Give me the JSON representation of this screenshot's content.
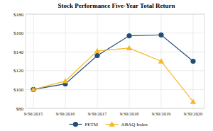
{
  "chart_data": {
    "type": "line",
    "title": "Stock Performance Five-Year Total Return",
    "categories": [
      "9/30/2015",
      "9/30/2016",
      "9/30/2017",
      "9/30/2018",
      "9/30/2019",
      "9/30/2020"
    ],
    "series": [
      {
        "name": "FETM",
        "color": "#1f4e79",
        "marker": "circle",
        "values": [
          100,
          106,
          136,
          157,
          158,
          130
        ]
      },
      {
        "name": "ABAQ Index",
        "color": "#f5b828",
        "marker": "triangle",
        "values": [
          100,
          109,
          141,
          144,
          130,
          87
        ]
      }
    ],
    "ylim": [
      80,
      180
    ],
    "yticks": [
      {
        "value": 80,
        "label": "$80"
      },
      {
        "value": 100,
        "label": "$100"
      },
      {
        "value": 120,
        "label": "$120"
      },
      {
        "value": 140,
        "label": "$140"
      },
      {
        "value": 160,
        "label": "$160"
      },
      {
        "value": 180,
        "label": "$180"
      }
    ],
    "grid": true,
    "legend": "bottom"
  }
}
